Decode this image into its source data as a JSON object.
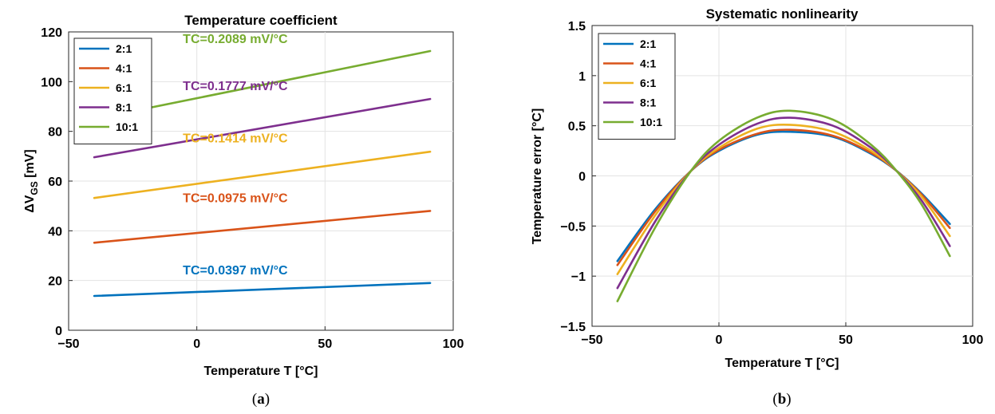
{
  "chart_data": [
    {
      "type": "line",
      "title": "Temperature coefficient",
      "xlabel": "Temperature T [°C]",
      "ylabel_main": "ΔV",
      "ylabel_sub": "GS",
      "ylabel_unit": " [mV]",
      "xlim": [
        -50,
        100
      ],
      "ylim": [
        0,
        120
      ],
      "xticks": [
        -50,
        0,
        50,
        100
      ],
      "xtick_labels": [
        "−50",
        "0",
        "50",
        "100"
      ],
      "yticks": [
        0,
        20,
        40,
        60,
        80,
        100,
        120
      ],
      "ytick_labels": [
        "0",
        "20",
        "40",
        "60",
        "80",
        "100",
        "120"
      ],
      "grid": true,
      "legend_position": "top-left",
      "caption_prefix": "(",
      "caption_letter": "a",
      "caption_suffix": ")",
      "series": [
        {
          "name": "2:1",
          "color": "#0072BD",
          "x": [
            -40,
            91
          ],
          "y": [
            13.8,
            19.0
          ],
          "annotation": "TC=0.0397 mV/°C",
          "ann_x": 15,
          "ann_y": 22.5
        },
        {
          "name": "4:1",
          "color": "#D95319",
          "x": [
            -40,
            91
          ],
          "y": [
            35.2,
            48.0
          ],
          "annotation": "TC=0.0975 mV/°C",
          "ann_x": 15,
          "ann_y": 51.5
        },
        {
          "name": "6:1",
          "color": "#EDB120",
          "x": [
            -40,
            91
          ],
          "y": [
            53.2,
            71.8
          ],
          "annotation": "TC=0.1414 mV/°C",
          "ann_x": 15,
          "ann_y": 75.5
        },
        {
          "name": "8:1",
          "color": "#7E2F8E",
          "x": [
            -40,
            91
          ],
          "y": [
            69.6,
            93.0
          ],
          "annotation": "TC=0.1777 mV/°C",
          "ann_x": 15,
          "ann_y": 96.5
        },
        {
          "name": "10:1",
          "color": "#77AC30",
          "x": [
            -40,
            91
          ],
          "y": [
            85.0,
            112.3
          ],
          "annotation": "TC=0.2089 mV/°C",
          "ann_x": 15,
          "ann_y": 115.5
        }
      ]
    },
    {
      "type": "line",
      "title": "Systematic nonlinearity",
      "xlabel": "Temperature T [°C]",
      "ylabel": "Temperature error [°C]",
      "xlim": [
        -50,
        100
      ],
      "ylim": [
        -1.5,
        1.5
      ],
      "xticks": [
        -50,
        0,
        50,
        100
      ],
      "xtick_labels": [
        "−50",
        "0",
        "50",
        "100"
      ],
      "yticks": [
        -1.5,
        -1,
        -0.5,
        0,
        0.5,
        1,
        1.5
      ],
      "ytick_labels": [
        "−1.5",
        "−1",
        "−0.5",
        "0",
        "0.5",
        "1",
        "1.5"
      ],
      "grid": true,
      "legend_position": "top-left",
      "caption_prefix": "(",
      "caption_letter": "b",
      "caption_suffix": ")",
      "series": [
        {
          "name": "2:1",
          "color": "#0072BD",
          "x": [
            -40,
            -25,
            -11,
            0,
            15,
            28,
            45,
            60,
            70,
            80,
            91
          ],
          "y": [
            -0.85,
            -0.33,
            0.05,
            0.25,
            0.41,
            0.44,
            0.39,
            0.22,
            0.05,
            -0.18,
            -0.48
          ]
        },
        {
          "name": "4:1",
          "color": "#D95319",
          "x": [
            -40,
            -25,
            -11,
            0,
            15,
            28,
            45,
            60,
            70,
            80,
            91
          ],
          "y": [
            -0.89,
            -0.35,
            0.05,
            0.26,
            0.42,
            0.46,
            0.4,
            0.23,
            0.05,
            -0.19,
            -0.52
          ]
        },
        {
          "name": "6:1",
          "color": "#EDB120",
          "x": [
            -40,
            -25,
            -11,
            0,
            15,
            28,
            45,
            60,
            70,
            80,
            91
          ],
          "y": [
            -0.98,
            -0.39,
            0.05,
            0.28,
            0.47,
            0.51,
            0.44,
            0.25,
            0.05,
            -0.21,
            -0.6
          ]
        },
        {
          "name": "8:1",
          "color": "#7E2F8E",
          "x": [
            -40,
            -25,
            -11,
            0,
            15,
            28,
            45,
            60,
            70,
            80,
            91
          ],
          "y": [
            -1.12,
            -0.45,
            0.05,
            0.31,
            0.52,
            0.58,
            0.5,
            0.28,
            0.05,
            -0.25,
            -0.7
          ]
        },
        {
          "name": "10:1",
          "color": "#77AC30",
          "x": [
            -40,
            -25,
            -11,
            0,
            15,
            28,
            45,
            60,
            70,
            80,
            91
          ],
          "y": [
            -1.25,
            -0.51,
            0.05,
            0.35,
            0.58,
            0.65,
            0.56,
            0.31,
            0.05,
            -0.29,
            -0.8
          ]
        }
      ]
    }
  ]
}
